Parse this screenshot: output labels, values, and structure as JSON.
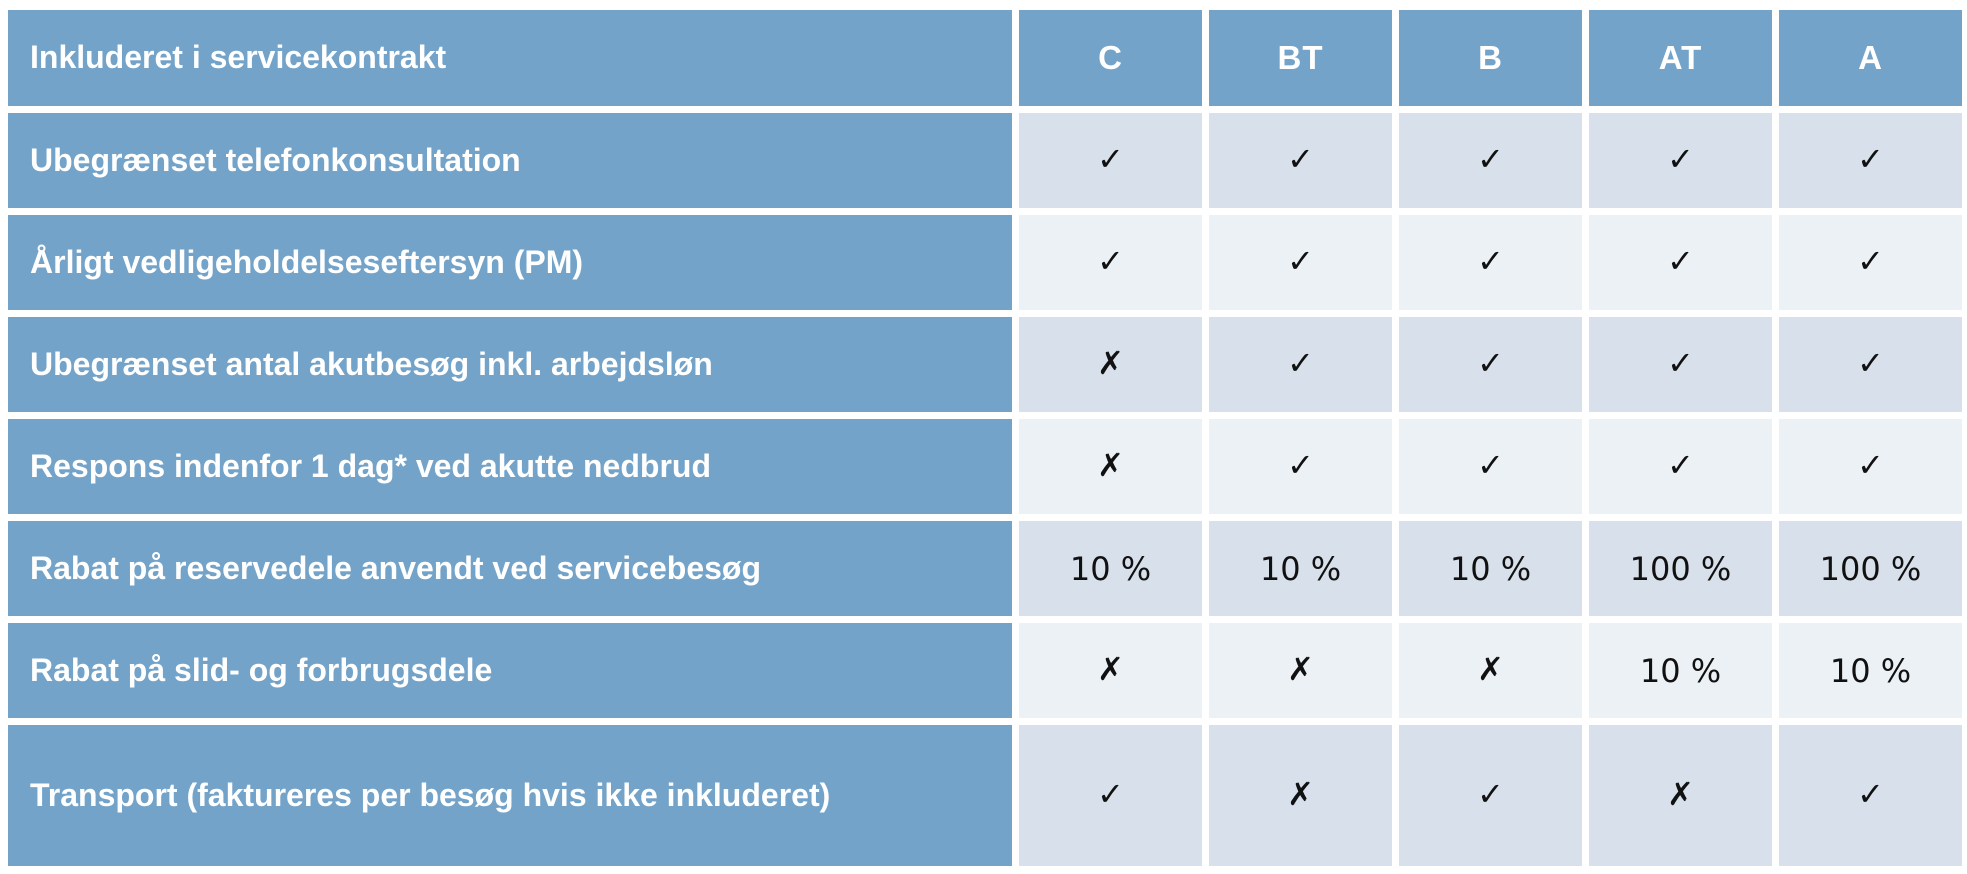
{
  "table": {
    "title": "Inkluderet i servicekontrakt",
    "columns": [
      "C",
      "BT",
      "B",
      "AT",
      "A"
    ],
    "rows": [
      {
        "label": "Ubegrænset telefonkonsultation",
        "values": [
          "✓",
          "✓",
          "✓",
          "✓",
          "✓"
        ]
      },
      {
        "label": "Årligt vedligeholdelseseftersyn (PM)",
        "values": [
          "✓",
          "✓",
          "✓",
          "✓",
          "✓"
        ]
      },
      {
        "label": "Ubegrænset antal akutbesøg inkl. arbejdsløn",
        "values": [
          "✗",
          "✓",
          "✓",
          "✓",
          "✓"
        ]
      },
      {
        "label": "Respons indenfor 1 dag* ved akutte nedbrud",
        "values": [
          "✗",
          "✓",
          "✓",
          "✓",
          "✓"
        ]
      },
      {
        "label": "Rabat på reservedele anvendt ved servicebesøg",
        "values": [
          "10 %",
          "10 %",
          "10 %",
          "100 %",
          "100 %"
        ]
      },
      {
        "label": "Rabat på slid- og forbrugsdele",
        "values": [
          "✗",
          "✗",
          "✗",
          "10 %",
          "10 %"
        ]
      },
      {
        "label": "Transport (faktureres per besøg hvis ikke inkluderet)",
        "values": [
          "✓",
          "✗",
          "✓",
          "✗",
          "✓"
        ]
      }
    ],
    "legend": {
      "check_glyph": "✓",
      "cross_glyph": "✗"
    },
    "colors": {
      "header_blue": "#73A3C8",
      "row_stripe_dark": "#D7E0EB",
      "row_stripe_light": "#ECF1F6",
      "header_text": "#FFFFFF",
      "value_text": "#111111",
      "background": "#FFFFFF"
    }
  }
}
